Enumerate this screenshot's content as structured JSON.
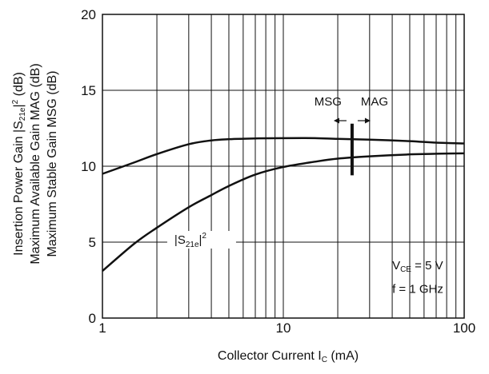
{
  "chart_data": {
    "type": "line",
    "x_scale": "log",
    "xlim": [
      1,
      100
    ],
    "ylim": [
      0,
      20
    ],
    "grid": true,
    "x_ticks": [
      {
        "value": 1,
        "label": "1"
      },
      {
        "value": 10,
        "label": "10"
      },
      {
        "value": 100,
        "label": "100"
      }
    ],
    "y_ticks": [
      {
        "value": 0,
        "label": "0"
      },
      {
        "value": 5,
        "label": "5"
      },
      {
        "value": 10,
        "label": "10"
      },
      {
        "value": 15,
        "label": "15"
      },
      {
        "value": 20,
        "label": "20"
      }
    ],
    "xlabel": "Collector Current  I",
    "xlabel_sub": "C",
    "xlabel_unit": " (mA)",
    "ylabel_lines": [
      {
        "text": "Insertion Power Gain  |S",
        "sub": "21e",
        "tail": "|",
        "sup": "2",
        "tail2": " (dB)"
      },
      {
        "text": "Maximum Available Gain  MAG (dB)"
      },
      {
        "text": "Maximum Stable Gain  MSG (dB)"
      }
    ],
    "series": [
      {
        "x": [
          1,
          1.5,
          2,
          3,
          4,
          5,
          7,
          10,
          15,
          20,
          30,
          50,
          70,
          100
        ],
        "y": [
          9.5,
          10.25,
          10.8,
          11.45,
          11.7,
          11.78,
          11.83,
          11.85,
          11.85,
          11.8,
          11.75,
          11.65,
          11.55,
          11.5
        ]
      },
      {
        "x": [
          1,
          1.5,
          2,
          3,
          4,
          5,
          7,
          10,
          15,
          20,
          30,
          50,
          70,
          100
        ],
        "y": [
          3.1,
          4.9,
          5.95,
          7.3,
          8.1,
          8.7,
          9.45,
          9.95,
          10.3,
          10.5,
          10.65,
          10.78,
          10.82,
          10.85
        ]
      }
    ],
    "boundary": {
      "x": 24,
      "y_low": 9.4,
      "y_high": 12.8
    },
    "annotations": {
      "msg": "MSG",
      "mag": "MAG",
      "s21_prefix": "|S",
      "s21_sub": "21e",
      "s21_suffix": "|",
      "s21_sup": "2",
      "cond_v_prefix": "V",
      "cond_v_sub": "CE",
      "cond_v_value": " = 5 V",
      "cond_f": "f = 1 GHz"
    }
  }
}
